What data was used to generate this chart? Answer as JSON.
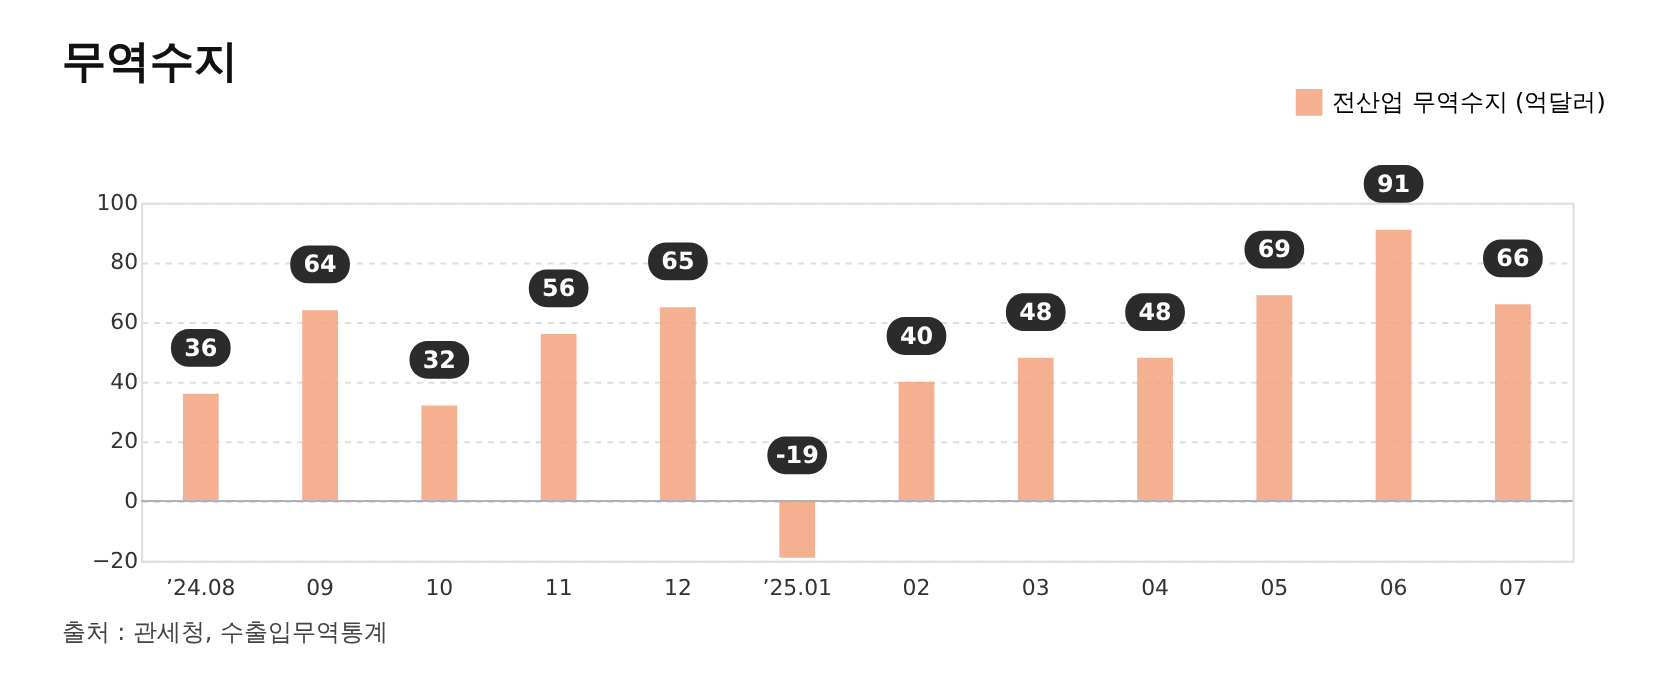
{
  "chart_data": {
    "type": "bar",
    "title": "무역수지",
    "categories": [
      "’24.08",
      "09",
      "10",
      "11",
      "12",
      "’25.01",
      "02",
      "03",
      "04",
      "05",
      "06",
      "07"
    ],
    "series": [
      {
        "name": "전산업 무역수지 (억달러)",
        "color": "#f2a27c",
        "values": [
          36,
          64,
          32,
          56,
          65,
          -19,
          40,
          48,
          48,
          69,
          91,
          66
        ]
      }
    ],
    "ylim": [
      -20,
      100
    ],
    "yticks": [
      -20,
      0,
      20,
      40,
      60,
      80,
      100
    ],
    "grid": "y",
    "legend": "top right",
    "data_labels": true,
    "annotations": [
      "출처 : 관세청, 수출입무역통계"
    ]
  }
}
